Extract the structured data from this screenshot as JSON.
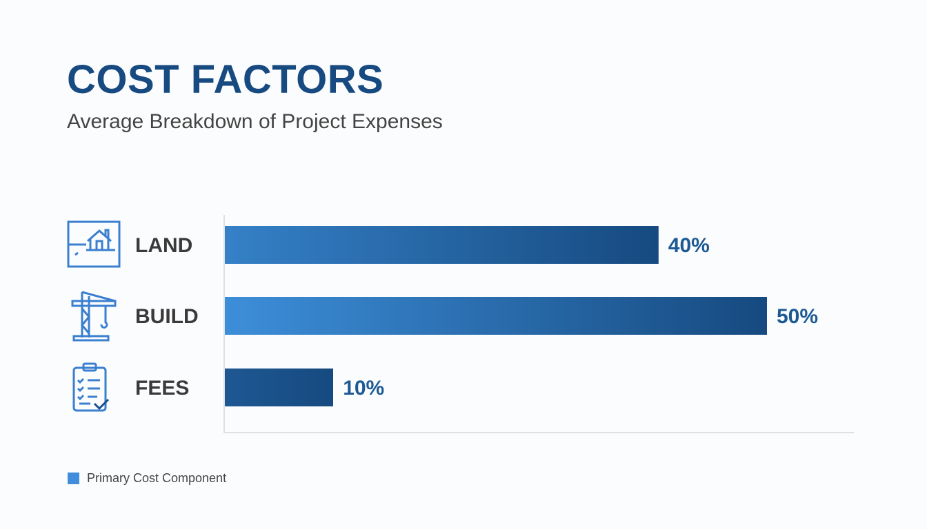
{
  "chart_data": {
    "type": "bar",
    "orientation": "horizontal",
    "title": "COST FACTORS",
    "subtitle": "Average Breakdown of Project Expenses",
    "categories": [
      "LAND",
      "BUILD",
      "FEES"
    ],
    "values": [
      40,
      50,
      10
    ],
    "value_labels": [
      "40%",
      "50%",
      "10%"
    ],
    "icons": [
      "land-house-icon",
      "crane-icon",
      "clipboard-checklist-icon"
    ],
    "legend": [
      {
        "label": "Primary Cost Component",
        "color": "#3f8ddb"
      }
    ],
    "legend_position": "bottom-left",
    "grid": false,
    "colors": {
      "bar_start": "#3d8ed9",
      "bar_end": "#164a80",
      "title": "#174a80",
      "icon": "#3a7fd0"
    }
  }
}
